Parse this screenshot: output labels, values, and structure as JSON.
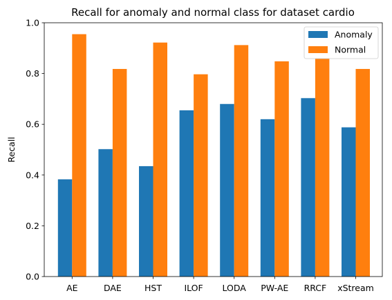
{
  "chart_data": {
    "type": "bar",
    "title": "Recall for anomaly and normal class for dataset cardio",
    "xlabel": "",
    "ylabel": "Recall",
    "ylim": [
      0,
      1.0
    ],
    "yticks": [
      0.0,
      0.2,
      0.4,
      0.6,
      0.8,
      1.0
    ],
    "ytick_labels": [
      "0.0",
      "0.2",
      "0.4",
      "0.6",
      "0.8",
      "1.0"
    ],
    "categories": [
      "AE",
      "DAE",
      "HST",
      "ILOF",
      "LODA",
      "PW-AE",
      "RRCF",
      "xStream"
    ],
    "series": [
      {
        "name": "Anomaly",
        "color": "#1f77b4",
        "values": [
          0.383,
          0.502,
          0.435,
          0.655,
          0.68,
          0.62,
          0.703,
          0.588
        ]
      },
      {
        "name": "Normal",
        "color": "#ff7f0e",
        "values": [
          0.955,
          0.818,
          0.922,
          0.797,
          0.912,
          0.848,
          0.86,
          0.818
        ]
      }
    ],
    "legend": {
      "position": "top-right"
    },
    "grid": false
  }
}
